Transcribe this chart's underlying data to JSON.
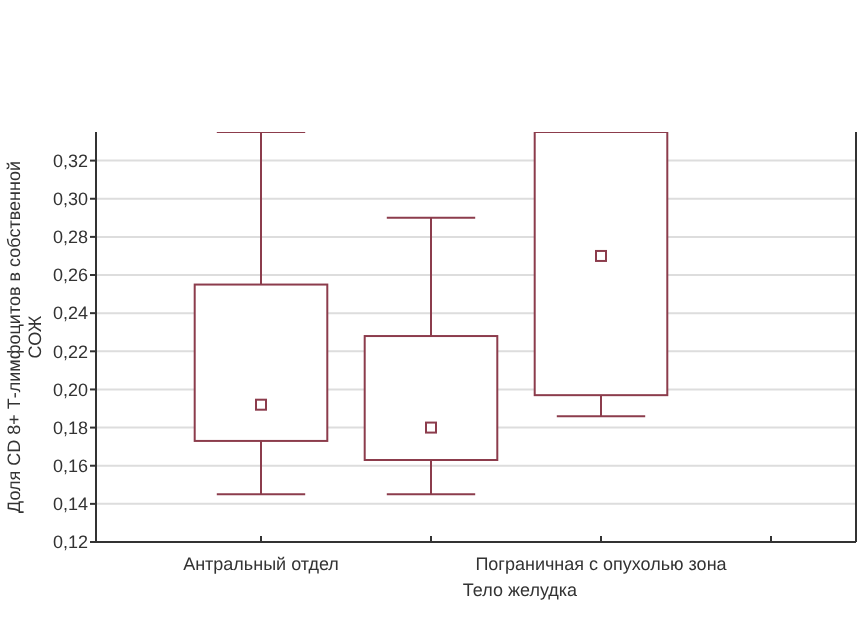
{
  "chart_data": {
    "type": "box",
    "xlabel": "Тело желудка",
    "ylabel": "Доля CD 8+ Т-лимфоцитов в собственной СОЖ",
    "categories": [
      "Антральный отдел",
      null,
      "Пограничная с опухолью зона",
      null
    ],
    "color": "#8c3c4c",
    "boxes": [
      {
        "low": 0.145,
        "q1": 0.173,
        "median": 0.192,
        "q3": 0.255,
        "high": 0.335
      },
      {
        "low": 0.145,
        "q1": 0.163,
        "median": 0.18,
        "q3": 0.228,
        "high": 0.29
      },
      {
        "low": 0.186,
        "q1": 0.197,
        "median": 0.27,
        "q3": 0.335,
        "high": 0.335
      },
      null
    ],
    "ylim": [
      0.12,
      0.335
    ],
    "yticks": [
      {
        "value": 0.12,
        "label": "0,12"
      },
      {
        "value": 0.14,
        "label": "0,14"
      },
      {
        "value": 0.16,
        "label": "0,16"
      },
      {
        "value": 0.18,
        "label": "0,18"
      },
      {
        "value": 0.2,
        "label": "0,20"
      },
      {
        "value": 0.22,
        "label": "0,22"
      },
      {
        "value": 0.24,
        "label": "0,24"
      },
      {
        "value": 0.26,
        "label": "0,26"
      },
      {
        "value": 0.28,
        "label": "0,28"
      },
      {
        "value": 0.3,
        "label": "0,30"
      },
      {
        "value": 0.32,
        "label": "0,32"
      }
    ],
    "grid": "y"
  }
}
